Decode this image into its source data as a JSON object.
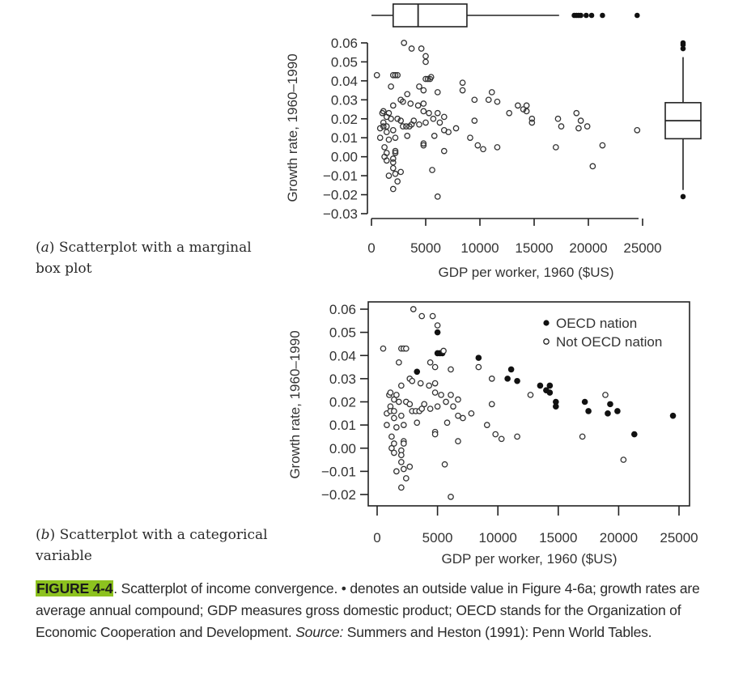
{
  "figure": {
    "tag": "FIGURE 4-4",
    "caption_part1": ". Scatterplot of income convergence. • denotes an outside value in Figure 4-6a; growth rates are average annual compound; GDP measures gross domestic product; OECD stands for the Organization of Economic Cooperation and Development. ",
    "source_label": "Source:",
    "source_text": " Summers and Heston (1991): Penn World Tables."
  },
  "panel_a": {
    "label_letter": "a",
    "label_text": "Scatterplot with a marginal box plot"
  },
  "panel_b": {
    "label_letter": "b",
    "label_text": "Scatterplot with a categorical variable"
  },
  "chart_data": [
    {
      "type": "scatter",
      "title": "(a) Scatterplot with a marginal box plot",
      "xlabel": "GDP per worker, 1960 ($US)",
      "ylabel": "Growth rate, 1960–1990",
      "xlim": [
        0,
        25000
      ],
      "ylim": [
        -0.03,
        0.06
      ],
      "x_ticks": [
        0,
        5000,
        10000,
        15000,
        20000,
        25000
      ],
      "x_tick_labels": [
        "0",
        "5000",
        "10000",
        "15000",
        "20000",
        "25000"
      ],
      "y_ticks": [
        0.06,
        0.05,
        0.04,
        0.03,
        0.02,
        0.01,
        0.0,
        -0.01,
        -0.02,
        -0.03
      ],
      "y_tick_labels": [
        "0.06",
        "0.05",
        "0.04",
        "0.03",
        "0.02",
        "0.01",
        "0.00",
        "−0.01",
        "−0.02",
        "−0.03"
      ],
      "grid": false,
      "marker": "open-circle",
      "uses_points": "shared",
      "marginal_boxplot_x": {
        "whisker_low": 0,
        "q1": 2000,
        "median": 4300,
        "q3": 8800,
        "whisker_high": 17300,
        "outliers": [
          18700,
          18900,
          19100,
          19300,
          19800,
          20300,
          21300,
          24500
        ]
      },
      "marginal_boxplot_y": {
        "whisker_low": -0.0175,
        "q1": 0.0095,
        "median": 0.019,
        "q3": 0.0285,
        "whisker_high": 0.0525,
        "outliers": [
          -0.021,
          0.057,
          0.059,
          0.06
        ]
      }
    },
    {
      "type": "scatter",
      "title": "(b) Scatterplot with a categorical variable",
      "xlabel": "GDP per worker, 1960 ($US)",
      "ylabel": "Growth rate, 1960–1990",
      "xlim": [
        0,
        25000
      ],
      "ylim": [
        -0.02,
        0.06
      ],
      "x_ticks": [
        0,
        5000,
        10000,
        15000,
        20000,
        25000
      ],
      "x_tick_labels": [
        "0",
        "5000",
        "10000",
        "15000",
        "20000",
        "25000"
      ],
      "y_ticks": [
        0.06,
        0.05,
        0.04,
        0.03,
        0.02,
        0.01,
        0.0,
        -0.01,
        -0.02
      ],
      "y_tick_labels": [
        "0.06",
        "0.05",
        "0.04",
        "0.03",
        "0.02",
        "0.01",
        "0.00",
        "−0.01",
        "−0.02"
      ],
      "grid": false,
      "legend": {
        "placement": "top-right",
        "entries": [
          {
            "label": "OECD nation",
            "marker": "filled-circle"
          },
          {
            "label": "Not OECD nation",
            "marker": "open-circle"
          }
        ]
      },
      "series": [
        {
          "name": "OECD nation",
          "marker": "filled-circle",
          "points": [
            [
              3300,
              0.033
            ],
            [
              5000,
              0.05
            ],
            [
              5000,
              0.041
            ],
            [
              5200,
              0.041
            ],
            [
              5400,
              0.041
            ],
            [
              8400,
              0.039
            ],
            [
              10800,
              0.03
            ],
            [
              11100,
              0.034
            ],
            [
              11600,
              0.029
            ],
            [
              13500,
              0.027
            ],
            [
              14000,
              0.025
            ],
            [
              14300,
              0.027
            ],
            [
              14300,
              0.024
            ],
            [
              14800,
              0.02
            ],
            [
              14800,
              0.018
            ],
            [
              17200,
              0.02
            ],
            [
              17500,
              0.016
            ],
            [
              19100,
              0.015
            ],
            [
              19300,
              0.019
            ],
            [
              19900,
              0.016
            ],
            [
              21300,
              0.006
            ],
            [
              24500,
              0.014
            ]
          ]
        },
        {
          "name": "Not OECD nation",
          "marker": "open-circle",
          "points": [
            [
              500,
              0.043
            ],
            [
              1000,
              0.023
            ],
            [
              800,
              0.015
            ],
            [
              800,
              0.01
            ],
            [
              1100,
              0.024
            ],
            [
              1100,
              0.018
            ],
            [
              1100,
              0.016
            ],
            [
              1200,
              0.005
            ],
            [
              1200,
              0.0
            ],
            [
              1400,
              0.021
            ],
            [
              1400,
              0.016
            ],
            [
              1400,
              0.013
            ],
            [
              1400,
              0.002
            ],
            [
              1400,
              -0.002
            ],
            [
              1600,
              0.023
            ],
            [
              1600,
              0.009
            ],
            [
              1600,
              -0.01
            ],
            [
              1800,
              0.037
            ],
            [
              1800,
              0.02
            ],
            [
              2000,
              0.043
            ],
            [
              2000,
              0.027
            ],
            [
              2000,
              0.014
            ],
            [
              2000,
              -0.001
            ],
            [
              2000,
              -0.003
            ],
            [
              2000,
              -0.006
            ],
            [
              2000,
              -0.017
            ],
            [
              2200,
              0.043
            ],
            [
              2200,
              0.01
            ],
            [
              2200,
              0.003
            ],
            [
              2200,
              0.002
            ],
            [
              2200,
              -0.009
            ],
            [
              2400,
              0.043
            ],
            [
              2400,
              0.02
            ],
            [
              2400,
              -0.013
            ],
            [
              2700,
              0.03
            ],
            [
              2700,
              0.019
            ],
            [
              2700,
              -0.008
            ],
            [
              2900,
              0.029
            ],
            [
              2900,
              0.016
            ],
            [
              3200,
              0.016
            ],
            [
              3300,
              0.011
            ],
            [
              3500,
              0.016
            ],
            [
              3600,
              0.028
            ],
            [
              3700,
              0.017
            ],
            [
              3900,
              0.019
            ],
            [
              4300,
              0.027
            ],
            [
              4400,
              0.037
            ],
            [
              4400,
              0.017
            ],
            [
              4600,
              0.057
            ],
            [
              4800,
              0.035
            ],
            [
              4800,
              0.028
            ],
            [
              4800,
              0.024
            ],
            [
              4800,
              0.007
            ],
            [
              4800,
              0.006
            ],
            [
              5000,
              0.018
            ],
            [
              3000,
              0.06
            ],
            [
              3700,
              0.057
            ],
            [
              5000,
              0.053
            ],
            [
              5300,
              0.023
            ],
            [
              5500,
              0.042
            ],
            [
              5700,
              0.02
            ],
            [
              5800,
              0.011
            ],
            [
              5600,
              -0.007
            ],
            [
              6100,
              0.034
            ],
            [
              6100,
              0.023
            ],
            [
              6300,
              0.018
            ],
            [
              6700,
              0.021
            ],
            [
              6700,
              0.014
            ],
            [
              6700,
              0.003
            ],
            [
              7100,
              0.013
            ],
            [
              6100,
              -0.021
            ],
            [
              7800,
              0.015
            ],
            [
              8400,
              0.035
            ],
            [
              9100,
              0.01
            ],
            [
              9500,
              0.03
            ],
            [
              9500,
              0.019
            ],
            [
              9800,
              0.006
            ],
            [
              10300,
              0.004
            ],
            [
              11600,
              0.005
            ],
            [
              12700,
              0.023
            ],
            [
              17000,
              0.005
            ],
            [
              18900,
              0.023
            ],
            [
              20400,
              -0.005
            ]
          ]
        }
      ]
    }
  ]
}
